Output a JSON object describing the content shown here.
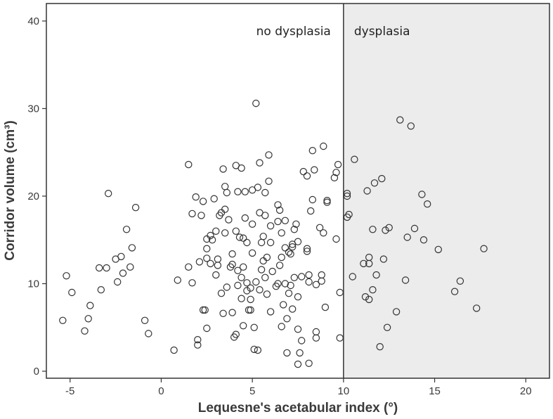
{
  "chart_data": {
    "type": "scatter",
    "xlabel": "Lequesne's acetabular index  (°)",
    "ylabel": "Corridor volume (cm³)",
    "xlim": [
      -6.3,
      21.3
    ],
    "ylim": [
      -0.8,
      42
    ],
    "xticks": [
      -5,
      0,
      5,
      10,
      15,
      20
    ],
    "yticks": [
      0,
      10,
      20,
      30,
      40
    ],
    "grid": false,
    "reference_line": {
      "x": 10
    },
    "regions": [
      {
        "label": "no dysplasia",
        "from": -6.3,
        "to": 10,
        "fill": "#ffffff"
      },
      {
        "label": "dysplasia",
        "from": 10,
        "to": 21.3,
        "fill": "#ececec"
      }
    ],
    "marker": {
      "shape": "open-circle",
      "color": "#333333"
    },
    "points": [
      [
        -5.4,
        5.8
      ],
      [
        -5.2,
        10.9
      ],
      [
        -4.9,
        9.0
      ],
      [
        -4.2,
        4.6
      ],
      [
        -4.0,
        6.0
      ],
      [
        -3.9,
        7.5
      ],
      [
        -3.4,
        11.8
      ],
      [
        -3.3,
        9.3
      ],
      [
        -3.0,
        11.8
      ],
      [
        -2.9,
        20.3
      ],
      [
        -2.5,
        12.8
      ],
      [
        -2.4,
        10.2
      ],
      [
        -2.2,
        13.1
      ],
      [
        -2.1,
        11.2
      ],
      [
        -1.9,
        16.2
      ],
      [
        -1.7,
        11.9
      ],
      [
        -1.6,
        14.1
      ],
      [
        -1.4,
        18.7
      ],
      [
        -0.9,
        5.8
      ],
      [
        -0.7,
        4.3
      ],
      [
        0.7,
        2.4
      ],
      [
        0.9,
        10.4
      ],
      [
        1.5,
        11.9
      ],
      [
        1.5,
        23.6
      ],
      [
        1.7,
        10.1
      ],
      [
        1.7,
        18.0
      ],
      [
        1.9,
        19.9
      ],
      [
        2.0,
        3.6
      ],
      [
        2.0,
        3.0
      ],
      [
        2.1,
        12.5
      ],
      [
        2.2,
        17.8
      ],
      [
        2.3,
        19.4
      ],
      [
        2.3,
        7.0
      ],
      [
        2.4,
        7.0
      ],
      [
        2.5,
        4.9
      ],
      [
        2.5,
        12.9
      ],
      [
        2.5,
        14.0
      ],
      [
        2.5,
        15.1
      ],
      [
        2.7,
        12.3
      ],
      [
        2.7,
        15.5
      ],
      [
        2.8,
        15.0
      ],
      [
        2.9,
        19.7
      ],
      [
        3.0,
        16.0
      ],
      [
        3.0,
        11.0
      ],
      [
        3.1,
        12.1
      ],
      [
        3.1,
        12.8
      ],
      [
        3.2,
        17.8
      ],
      [
        3.3,
        18.1
      ],
      [
        3.3,
        8.9
      ],
      [
        3.4,
        6.6
      ],
      [
        3.4,
        23.1
      ],
      [
        3.5,
        21.1
      ],
      [
        3.5,
        15.8
      ],
      [
        3.5,
        18.5
      ],
      [
        3.6,
        9.6
      ],
      [
        3.6,
        20.4
      ],
      [
        3.7,
        17.3
      ],
      [
        3.8,
        11.9
      ],
      [
        3.9,
        12.2
      ],
      [
        3.9,
        13.4
      ],
      [
        3.9,
        6.7
      ],
      [
        4.0,
        3.9
      ],
      [
        4.1,
        16.0
      ],
      [
        4.1,
        4.2
      ],
      [
        4.1,
        23.5
      ],
      [
        4.2,
        11.5
      ],
      [
        4.2,
        20.5
      ],
      [
        4.2,
        9.8
      ],
      [
        4.3,
        15.3
      ],
      [
        4.4,
        10.7
      ],
      [
        4.4,
        8.3
      ],
      [
        4.4,
        23.2
      ],
      [
        4.5,
        15.2
      ],
      [
        4.5,
        11.9
      ],
      [
        4.5,
        5.2
      ],
      [
        4.6,
        20.5
      ],
      [
        4.6,
        17.5
      ],
      [
        4.7,
        14.7
      ],
      [
        4.7,
        10.1
      ],
      [
        4.7,
        9.2
      ],
      [
        4.8,
        7.0
      ],
      [
        4.9,
        7.0
      ],
      [
        4.9,
        8.2
      ],
      [
        4.9,
        9.5
      ],
      [
        5.0,
        13.5
      ],
      [
        5.0,
        16.8
      ],
      [
        5.0,
        20.7
      ],
      [
        5.1,
        5.0
      ],
      [
        5.1,
        2.5
      ],
      [
        5.2,
        30.6
      ],
      [
        5.2,
        10.2
      ],
      [
        5.3,
        2.4
      ],
      [
        5.3,
        21.0
      ],
      [
        5.4,
        23.8
      ],
      [
        5.4,
        18.1
      ],
      [
        5.4,
        9.3
      ],
      [
        5.5,
        11.6
      ],
      [
        5.5,
        14.7
      ],
      [
        5.6,
        12.6
      ],
      [
        5.6,
        15.4
      ],
      [
        5.7,
        17.8
      ],
      [
        5.7,
        20.4
      ],
      [
        5.7,
        10.7
      ],
      [
        5.8,
        13.0
      ],
      [
        5.8,
        8.8
      ],
      [
        5.9,
        21.7
      ],
      [
        5.9,
        24.7
      ],
      [
        6.0,
        6.8
      ],
      [
        6.0,
        16.6
      ],
      [
        6.0,
        14.7
      ],
      [
        6.1,
        11.4
      ],
      [
        6.3,
        9.7
      ],
      [
        6.4,
        10.0
      ],
      [
        6.4,
        19.0
      ],
      [
        6.4,
        17.1
      ],
      [
        6.5,
        18.4
      ],
      [
        6.5,
        12.1
      ],
      [
        6.6,
        13.0
      ],
      [
        6.6,
        15.8
      ],
      [
        6.6,
        5.1
      ],
      [
        6.7,
        7.6
      ],
      [
        6.8,
        17.2
      ],
      [
        6.8,
        14.1
      ],
      [
        6.8,
        10.0
      ],
      [
        6.9,
        2.1
      ],
      [
        6.9,
        6.0
      ],
      [
        7.0,
        8.9
      ],
      [
        7.0,
        13.6
      ],
      [
        7.1,
        9.8
      ],
      [
        7.1,
        13.4
      ],
      [
        7.2,
        14.2
      ],
      [
        7.2,
        14.5
      ],
      [
        7.2,
        7.1
      ],
      [
        7.3,
        10.7
      ],
      [
        7.3,
        16.2
      ],
      [
        7.4,
        16.8
      ],
      [
        7.5,
        14.8
      ],
      [
        7.5,
        4.8
      ],
      [
        7.5,
        8.5
      ],
      [
        7.5,
        0.8
      ],
      [
        7.6,
        2.1
      ],
      [
        7.7,
        10.8
      ],
      [
        7.7,
        3.5
      ],
      [
        7.8,
        22.8
      ],
      [
        8.0,
        22.3
      ],
      [
        8.0,
        14.0
      ],
      [
        8.0,
        13.7
      ],
      [
        8.1,
        11.0
      ],
      [
        8.1,
        10.2
      ],
      [
        8.1,
        0.9
      ],
      [
        8.2,
        18.3
      ],
      [
        8.3,
        19.6
      ],
      [
        8.3,
        25.2
      ],
      [
        8.4,
        23.0
      ],
      [
        8.5,
        4.5
      ],
      [
        8.5,
        3.8
      ],
      [
        8.5,
        9.9
      ],
      [
        8.7,
        16.4
      ],
      [
        8.8,
        10.3
      ],
      [
        8.8,
        11.0
      ],
      [
        8.9,
        15.8
      ],
      [
        8.9,
        25.7
      ],
      [
        9.0,
        7.3
      ],
      [
        9.1,
        19.5
      ],
      [
        9.1,
        19.3
      ],
      [
        9.5,
        22.1
      ],
      [
        9.6,
        22.7
      ],
      [
        9.6,
        15.1
      ],
      [
        9.7,
        23.6
      ],
      [
        9.8,
        9.0
      ],
      [
        9.8,
        3.8
      ],
      [
        10.2,
        20.3
      ],
      [
        10.2,
        20.0
      ],
      [
        10.2,
        17.6
      ],
      [
        10.3,
        17.9
      ],
      [
        10.5,
        10.8
      ],
      [
        10.6,
        24.2
      ],
      [
        11.1,
        12.3
      ],
      [
        11.2,
        8.5
      ],
      [
        11.3,
        20.6
      ],
      [
        11.4,
        13.0
      ],
      [
        11.4,
        12.3
      ],
      [
        11.4,
        8.2
      ],
      [
        11.6,
        16.2
      ],
      [
        11.6,
        9.3
      ],
      [
        11.7,
        21.5
      ],
      [
        11.8,
        11.0
      ],
      [
        12.0,
        2.8
      ],
      [
        12.1,
        22.0
      ],
      [
        12.2,
        12.8
      ],
      [
        12.3,
        16.1
      ],
      [
        12.5,
        16.4
      ],
      [
        12.4,
        5.0
      ],
      [
        12.9,
        6.8
      ],
      [
        13.1,
        28.7
      ],
      [
        13.4,
        10.4
      ],
      [
        13.5,
        15.3
      ],
      [
        13.7,
        28.0
      ],
      [
        13.9,
        16.3
      ],
      [
        14.3,
        20.2
      ],
      [
        14.4,
        15.0
      ],
      [
        14.6,
        19.1
      ],
      [
        15.2,
        13.9
      ],
      [
        16.1,
        9.1
      ],
      [
        16.4,
        10.3
      ],
      [
        17.3,
        7.2
      ],
      [
        17.7,
        14.0
      ]
    ]
  }
}
